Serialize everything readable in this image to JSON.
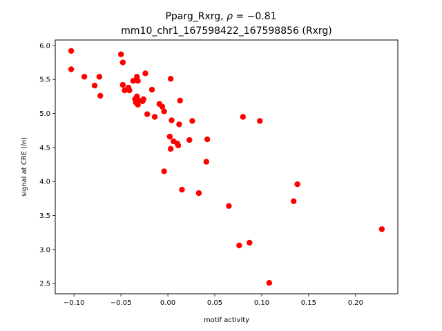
{
  "chart_data": {
    "type": "scatter",
    "title_line1_name": "Pparg_Rxrg,",
    "title_line1_rho": "ρ",
    "title_line1_value": "= −0.81",
    "title_line2": "mm10_chr1_167598422_167598856 (Rxrg)",
    "xlabel": "motif activity",
    "ylabel_prefix": "signal at CRE (",
    "ylabel_italic": "ln",
    "ylabel_suffix": ")",
    "xlim": [
      -0.12,
      0.245
    ],
    "ylim": [
      2.35,
      6.08
    ],
    "x_ticks": [
      -0.1,
      -0.05,
      0.0,
      0.05,
      0.1,
      0.15,
      0.2
    ],
    "x_tick_labels": [
      "−0.10",
      "−0.05",
      "0.00",
      "0.05",
      "0.10",
      "0.15",
      "0.20"
    ],
    "y_ticks": [
      2.5,
      3.0,
      3.5,
      4.0,
      4.5,
      5.0,
      5.5,
      6.0
    ],
    "y_tick_labels": [
      "2.5",
      "3.0",
      "3.5",
      "4.0",
      "4.5",
      "5.0",
      "5.5",
      "6.0"
    ],
    "grid": false,
    "marker_color": "#ff0000",
    "series": [
      {
        "points": [
          [
            -0.103,
            5.92
          ],
          [
            -0.103,
            5.65
          ],
          [
            -0.089,
            5.54
          ],
          [
            -0.078,
            5.41
          ],
          [
            -0.073,
            5.54
          ],
          [
            -0.072,
            5.26
          ],
          [
            -0.05,
            5.87
          ],
          [
            -0.048,
            5.75
          ],
          [
            -0.048,
            5.42
          ],
          [
            -0.046,
            5.34
          ],
          [
            -0.042,
            5.38
          ],
          [
            -0.041,
            5.34
          ],
          [
            -0.037,
            5.48
          ],
          [
            -0.035,
            5.21
          ],
          [
            -0.034,
            5.16
          ],
          [
            -0.033,
            5.54
          ],
          [
            -0.033,
            5.25
          ],
          [
            -0.032,
            5.48
          ],
          [
            -0.032,
            5.13
          ],
          [
            -0.031,
            5.19
          ],
          [
            -0.027,
            5.18
          ],
          [
            -0.026,
            5.21
          ],
          [
            -0.024,
            5.59
          ],
          [
            -0.022,
            4.99
          ],
          [
            -0.017,
            5.35
          ],
          [
            -0.014,
            4.95
          ],
          [
            -0.009,
            5.14
          ],
          [
            -0.006,
            5.1
          ],
          [
            -0.004,
            5.03
          ],
          [
            -0.004,
            4.15
          ],
          [
            0.002,
            4.66
          ],
          [
            0.003,
            4.48
          ],
          [
            0.003,
            5.51
          ],
          [
            0.004,
            4.9
          ],
          [
            0.006,
            4.59
          ],
          [
            0.01,
            4.56
          ],
          [
            0.011,
            4.53
          ],
          [
            0.012,
            4.84
          ],
          [
            0.013,
            5.19
          ],
          [
            0.015,
            3.88
          ],
          [
            0.023,
            4.61
          ],
          [
            0.026,
            4.89
          ],
          [
            0.033,
            3.83
          ],
          [
            0.041,
            4.29
          ],
          [
            0.042,
            4.62
          ],
          [
            0.065,
            3.64
          ],
          [
            0.076,
            3.06
          ],
          [
            0.08,
            4.95
          ],
          [
            0.087,
            3.1
          ],
          [
            0.098,
            4.89
          ],
          [
            0.108,
            2.51
          ],
          [
            0.134,
            3.71
          ],
          [
            0.138,
            3.96
          ],
          [
            0.228,
            3.3
          ]
        ]
      }
    ]
  }
}
